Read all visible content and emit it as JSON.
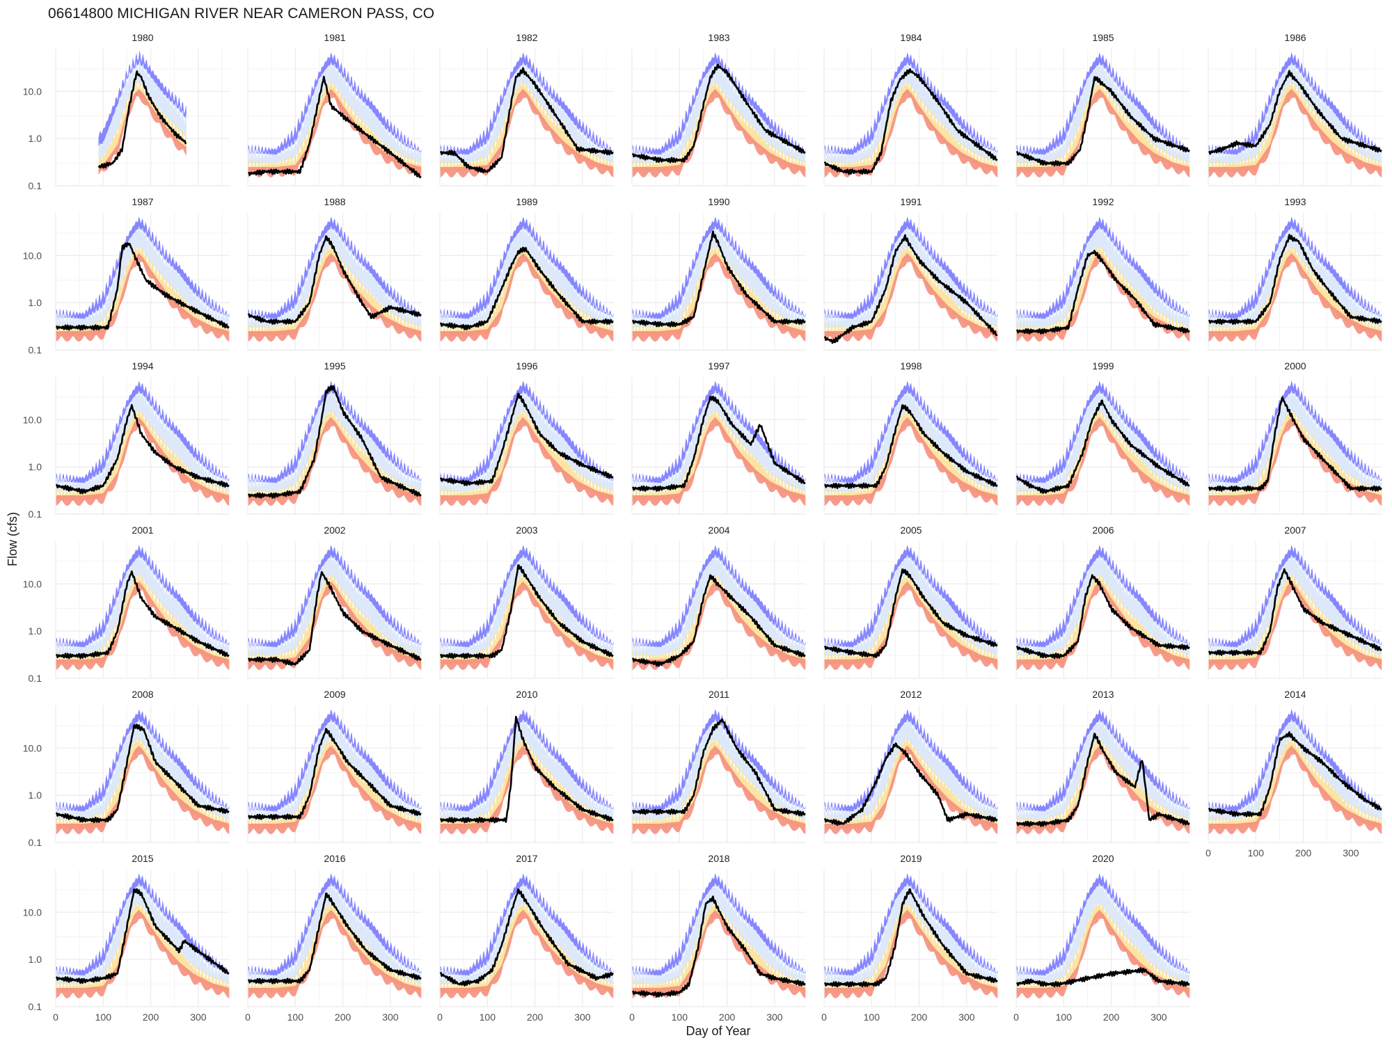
{
  "title": "06614800   MICHIGAN RIVER NEAR CAMERON PASS, CO",
  "xlabel": "Day of Year",
  "ylabel": "Flow (cfs)",
  "colors": {
    "band_max": "#8080ff",
    "band_high": "#dde9fb",
    "band_mid": "#fbe19a",
    "band_low": "#f48a78",
    "observed": "#000000",
    "grid": "#ebebeb",
    "text": "#222222",
    "tick_text": "#4d4d4d"
  },
  "chart_data": {
    "type": "line",
    "layout": "facet-grid 7 columns x 6 rows",
    "x_axis": {
      "label": "Day of Year",
      "range": [
        0,
        366
      ],
      "ticks": [
        "0",
        "100",
        "200",
        "300"
      ]
    },
    "y_axis": {
      "label": "Flow (cfs)",
      "scale": "log10",
      "range": [
        0.1,
        80
      ],
      "ticks": [
        "0.1",
        "1.0",
        "10.0"
      ]
    },
    "percentile_bands": {
      "note": "shaded historical daily flow percentile envelope, colored bands",
      "x": [
        1,
        60,
        100,
        130,
        150,
        165,
        175,
        185,
        200,
        230,
        260,
        290,
        330,
        365
      ],
      "max": [
        0.6,
        0.6,
        1.5,
        8,
        25,
        45,
        60,
        50,
        30,
        12,
        6,
        2.5,
        1.0,
        0.55
      ],
      "high": [
        0.5,
        0.45,
        0.8,
        5,
        18,
        30,
        38,
        32,
        20,
        8,
        4,
        1.6,
        0.7,
        0.5
      ],
      "mid": [
        0.3,
        0.3,
        0.4,
        1.5,
        6,
        13,
        15,
        12,
        7,
        3,
        1.5,
        0.7,
        0.4,
        0.3
      ],
      "low": [
        0.2,
        0.2,
        0.22,
        0.6,
        3,
        7,
        9,
        7,
        4,
        1.5,
        0.7,
        0.4,
        0.25,
        0.2
      ]
    },
    "series": [
      {
        "name": "1980",
        "x": [
          90,
          120,
          140,
          155,
          170,
          180,
          195,
          220,
          250,
          275
        ],
        "y": [
          0.25,
          0.3,
          0.6,
          5,
          25,
          20,
          8,
          3,
          1.3,
          0.8
        ]
      },
      {
        "name": "1981",
        "x": [
          1,
          40,
          90,
          110,
          130,
          150,
          160,
          175,
          200,
          250,
          300,
          365
        ],
        "y": [
          0.18,
          0.2,
          0.2,
          0.2,
          0.8,
          7,
          20,
          5,
          3,
          1.2,
          0.5,
          0.15
        ]
      },
      {
        "name": "1982",
        "x": [
          1,
          30,
          60,
          100,
          130,
          145,
          160,
          175,
          200,
          250,
          290,
          365
        ],
        "y": [
          0.5,
          0.5,
          0.25,
          0.2,
          0.4,
          3,
          20,
          28,
          14,
          2.5,
          0.6,
          0.5
        ]
      },
      {
        "name": "1983",
        "x": [
          1,
          60,
          110,
          130,
          150,
          165,
          180,
          200,
          240,
          280,
          365
        ],
        "y": [
          0.45,
          0.35,
          0.35,
          0.7,
          5,
          20,
          35,
          25,
          6,
          1.5,
          0.5
        ]
      },
      {
        "name": "1984",
        "x": [
          1,
          40,
          100,
          120,
          140,
          160,
          180,
          200,
          240,
          280,
          365
        ],
        "y": [
          0.3,
          0.2,
          0.2,
          0.5,
          6,
          18,
          28,
          20,
          6,
          1.5,
          0.35
        ]
      },
      {
        "name": "1985",
        "x": [
          1,
          60,
          110,
          135,
          150,
          165,
          180,
          200,
          240,
          290,
          365
        ],
        "y": [
          0.5,
          0.3,
          0.3,
          0.6,
          3,
          20,
          15,
          10,
          3,
          1,
          0.55
        ]
      },
      {
        "name": "1986",
        "x": [
          1,
          30,
          60,
          100,
          130,
          150,
          170,
          190,
          230,
          280,
          365
        ],
        "y": [
          0.5,
          0.6,
          0.8,
          0.7,
          2,
          10,
          25,
          15,
          4,
          1,
          0.55
        ]
      },
      {
        "name": "1987",
        "x": [
          1,
          60,
          110,
          130,
          140,
          155,
          170,
          190,
          230,
          280,
          365
        ],
        "y": [
          0.3,
          0.3,
          0.3,
          2,
          15,
          18,
          8,
          3,
          1.5,
          0.8,
          0.3
        ]
      },
      {
        "name": "1988",
        "x": [
          1,
          40,
          100,
          130,
          150,
          165,
          180,
          200,
          240,
          260,
          300,
          365
        ],
        "y": [
          0.55,
          0.4,
          0.4,
          1,
          10,
          25,
          15,
          5,
          1,
          0.5,
          0.8,
          0.55
        ]
      },
      {
        "name": "1989",
        "x": [
          1,
          60,
          100,
          130,
          150,
          165,
          180,
          210,
          250,
          300,
          365
        ],
        "y": [
          0.35,
          0.3,
          0.4,
          2,
          6,
          12,
          14,
          5,
          1.5,
          0.4,
          0.4
        ]
      },
      {
        "name": "1990",
        "x": [
          1,
          60,
          100,
          130,
          150,
          170,
          180,
          200,
          240,
          300,
          365
        ],
        "y": [
          0.4,
          0.35,
          0.35,
          0.5,
          4,
          30,
          20,
          6,
          1.5,
          0.4,
          0.4
        ]
      },
      {
        "name": "1991",
        "x": [
          1,
          20,
          60,
          100,
          130,
          150,
          170,
          200,
          240,
          300,
          365
        ],
        "y": [
          0.18,
          0.15,
          0.3,
          0.4,
          2,
          12,
          25,
          8,
          3,
          1,
          0.2
        ]
      },
      {
        "name": "1992",
        "x": [
          1,
          60,
          110,
          130,
          150,
          165,
          180,
          210,
          250,
          290,
          365
        ],
        "y": [
          0.25,
          0.25,
          0.3,
          2,
          10,
          12,
          8,
          3,
          1.2,
          0.35,
          0.25
        ]
      },
      {
        "name": "1993",
        "x": [
          1,
          60,
          100,
          130,
          150,
          170,
          190,
          220,
          260,
          300,
          365
        ],
        "y": [
          0.4,
          0.4,
          0.4,
          1,
          8,
          25,
          20,
          5,
          1.5,
          0.5,
          0.4
        ]
      },
      {
        "name": "1994",
        "x": [
          1,
          60,
          100,
          130,
          150,
          160,
          180,
          210,
          250,
          300,
          365
        ],
        "y": [
          0.4,
          0.3,
          0.4,
          1.5,
          10,
          20,
          5,
          2,
          1,
          0.6,
          0.4
        ]
      },
      {
        "name": "1995",
        "x": [
          1,
          60,
          110,
          140,
          155,
          165,
          180,
          200,
          240,
          280,
          365
        ],
        "y": [
          0.25,
          0.25,
          0.3,
          1.5,
          10,
          40,
          50,
          15,
          4,
          0.6,
          0.25
        ]
      },
      {
        "name": "1996",
        "x": [
          1,
          60,
          110,
          130,
          150,
          165,
          180,
          210,
          250,
          300,
          365
        ],
        "y": [
          0.55,
          0.45,
          0.5,
          2,
          10,
          35,
          20,
          5,
          2,
          1.1,
          0.6
        ]
      },
      {
        "name": "1997",
        "x": [
          1,
          60,
          110,
          130,
          150,
          165,
          180,
          210,
          250,
          270,
          300,
          365
        ],
        "y": [
          0.35,
          0.35,
          0.4,
          1.5,
          10,
          30,
          25,
          8,
          3,
          8,
          1.2,
          0.45
        ]
      },
      {
        "name": "1998",
        "x": [
          1,
          60,
          110,
          130,
          150,
          165,
          180,
          210,
          250,
          300,
          365
        ],
        "y": [
          0.4,
          0.4,
          0.4,
          1,
          6,
          20,
          15,
          5,
          2,
          0.8,
          0.4
        ]
      },
      {
        "name": "1999",
        "x": [
          1,
          30,
          60,
          110,
          140,
          160,
          180,
          200,
          240,
          300,
          365
        ],
        "y": [
          0.6,
          0.4,
          0.3,
          0.4,
          2,
          10,
          25,
          10,
          3,
          1,
          0.4
        ]
      },
      {
        "name": "2000",
        "x": [
          1,
          60,
          110,
          125,
          140,
          155,
          170,
          200,
          240,
          300,
          365
        ],
        "y": [
          0.35,
          0.35,
          0.35,
          0.5,
          5,
          30,
          15,
          4,
          1.5,
          0.35,
          0.35
        ]
      },
      {
        "name": "2001",
        "x": [
          1,
          60,
          110,
          130,
          150,
          160,
          180,
          210,
          250,
          300,
          365
        ],
        "y": [
          0.3,
          0.3,
          0.35,
          1,
          10,
          18,
          5,
          2,
          1.2,
          0.6,
          0.3
        ]
      },
      {
        "name": "2002",
        "x": [
          1,
          60,
          100,
          130,
          145,
          155,
          170,
          200,
          240,
          300,
          365
        ],
        "y": [
          0.25,
          0.25,
          0.2,
          0.4,
          5,
          18,
          10,
          2.5,
          1,
          0.5,
          0.25
        ]
      },
      {
        "name": "2003",
        "x": [
          1,
          60,
          110,
          130,
          150,
          165,
          180,
          210,
          250,
          300,
          365
        ],
        "y": [
          0.3,
          0.3,
          0.3,
          0.4,
          3,
          25,
          15,
          5,
          1.5,
          0.6,
          0.3
        ]
      },
      {
        "name": "2004",
        "x": [
          1,
          60,
          100,
          130,
          150,
          165,
          180,
          210,
          250,
          300,
          365
        ],
        "y": [
          0.25,
          0.2,
          0.3,
          0.6,
          5,
          15,
          10,
          5,
          2,
          0.5,
          0.3
        ]
      },
      {
        "name": "2005",
        "x": [
          1,
          60,
          110,
          130,
          150,
          165,
          180,
          210,
          250,
          300,
          365
        ],
        "y": [
          0.45,
          0.35,
          0.3,
          0.5,
          5,
          20,
          15,
          5,
          1.5,
          0.8,
          0.5
        ]
      },
      {
        "name": "2006",
        "x": [
          1,
          60,
          100,
          130,
          145,
          160,
          175,
          200,
          240,
          300,
          365
        ],
        "y": [
          0.45,
          0.3,
          0.3,
          0.6,
          5,
          15,
          10,
          3,
          1.2,
          0.5,
          0.45
        ]
      },
      {
        "name": "2007",
        "x": [
          1,
          60,
          110,
          130,
          145,
          160,
          175,
          200,
          240,
          300,
          365
        ],
        "y": [
          0.35,
          0.35,
          0.35,
          1,
          8,
          20,
          10,
          3,
          1.5,
          0.8,
          0.4
        ]
      },
      {
        "name": "2008",
        "x": [
          1,
          60,
          110,
          130,
          150,
          165,
          185,
          210,
          250,
          300,
          365
        ],
        "y": [
          0.4,
          0.3,
          0.3,
          0.5,
          5,
          30,
          25,
          5,
          2,
          0.6,
          0.45
        ]
      },
      {
        "name": "2009",
        "x": [
          1,
          60,
          110,
          130,
          150,
          165,
          180,
          210,
          250,
          300,
          365
        ],
        "y": [
          0.35,
          0.35,
          0.35,
          1,
          10,
          25,
          15,
          5,
          2,
          0.6,
          0.4
        ]
      },
      {
        "name": "2010",
        "x": [
          1,
          60,
          110,
          140,
          150,
          160,
          175,
          200,
          240,
          300,
          365
        ],
        "y": [
          0.3,
          0.3,
          0.3,
          0.3,
          2,
          45,
          15,
          4,
          1.5,
          0.5,
          0.3
        ]
      },
      {
        "name": "2011",
        "x": [
          1,
          60,
          110,
          130,
          150,
          170,
          190,
          220,
          260,
          300,
          365
        ],
        "y": [
          0.45,
          0.45,
          0.45,
          1,
          8,
          25,
          40,
          10,
          3,
          0.5,
          0.4
        ]
      },
      {
        "name": "2012",
        "x": [
          1,
          40,
          80,
          110,
          130,
          150,
          170,
          200,
          240,
          260,
          300,
          365
        ],
        "y": [
          0.3,
          0.25,
          0.5,
          2,
          6,
          12,
          8,
          3,
          1,
          0.3,
          0.4,
          0.3
        ]
      },
      {
        "name": "2013",
        "x": [
          1,
          60,
          110,
          130,
          150,
          165,
          185,
          210,
          250,
          265,
          280,
          300,
          365
        ],
        "y": [
          0.25,
          0.25,
          0.3,
          0.6,
          5,
          20,
          8,
          3,
          1.5,
          6,
          0.3,
          0.4,
          0.25
        ]
      },
      {
        "name": "2014",
        "x": [
          1,
          30,
          60,
          110,
          130,
          150,
          170,
          200,
          240,
          280,
          330,
          365
        ],
        "y": [
          0.5,
          0.45,
          0.4,
          0.4,
          1.5,
          15,
          20,
          10,
          5,
          2,
          0.8,
          0.5
        ]
      },
      {
        "name": "2015",
        "x": [
          1,
          60,
          100,
          130,
          150,
          165,
          180,
          210,
          260,
          270,
          300,
          365
        ],
        "y": [
          0.4,
          0.35,
          0.4,
          0.5,
          5,
          30,
          25,
          5,
          1.5,
          2.5,
          1.5,
          0.5
        ]
      },
      {
        "name": "2016",
        "x": [
          1,
          60,
          110,
          130,
          150,
          165,
          180,
          210,
          250,
          300,
          365
        ],
        "y": [
          0.35,
          0.35,
          0.35,
          0.6,
          5,
          25,
          15,
          5,
          1.5,
          0.6,
          0.4
        ]
      },
      {
        "name": "2017",
        "x": [
          1,
          40,
          80,
          110,
          130,
          150,
          165,
          185,
          220,
          270,
          330,
          365
        ],
        "y": [
          0.5,
          0.3,
          0.35,
          0.6,
          2,
          10,
          30,
          15,
          4,
          0.8,
          0.4,
          0.5
        ]
      },
      {
        "name": "2018",
        "x": [
          1,
          60,
          100,
          120,
          140,
          155,
          170,
          200,
          240,
          270,
          300,
          365
        ],
        "y": [
          0.2,
          0.18,
          0.2,
          0.3,
          2,
          15,
          20,
          5,
          1.5,
          0.5,
          0.4,
          0.3
        ]
      },
      {
        "name": "2019",
        "x": [
          1,
          60,
          110,
          130,
          150,
          165,
          180,
          210,
          250,
          300,
          365
        ],
        "y": [
          0.3,
          0.3,
          0.3,
          0.4,
          2,
          15,
          30,
          8,
          2,
          0.5,
          0.35
        ]
      },
      {
        "name": "2020",
        "x": [
          1,
          30,
          60,
          90,
          150,
          200,
          270,
          300,
          365
        ],
        "y": [
          0.3,
          0.35,
          0.3,
          0.3,
          0.4,
          0.5,
          0.6,
          0.35,
          0.3
        ]
      }
    ]
  }
}
